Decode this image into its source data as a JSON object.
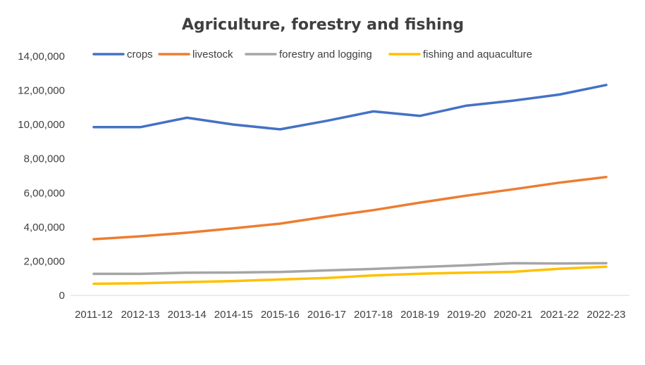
{
  "chart_data": {
    "type": "line",
    "title": "Agriculture, forestry and fishing",
    "xlabel": "",
    "ylabel": "",
    "categories": [
      "2011-12",
      "2012-13",
      "2013-14",
      "2014-15",
      "2015-16",
      "2016-17",
      "2017-18",
      "2018-19",
      "2019-20",
      "2020-21",
      "2021-22",
      "2022-23"
    ],
    "ylim": [
      0,
      1400000
    ],
    "yticks": [
      0,
      200000,
      400000,
      600000,
      800000,
      1000000,
      1200000,
      1400000
    ],
    "ytick_labels": [
      "0",
      "2,00,000",
      "4,00,000",
      "6,00,000",
      "8,00,000",
      "10,00,000",
      "12,00,000",
      "14,00,000"
    ],
    "grid": "horizontal",
    "legend": "top",
    "series": [
      {
        "name": "crops",
        "color": "#4472C4",
        "values": [
          985000,
          985000,
          1040000,
          1000000,
          972000,
          1022000,
          1077000,
          1051000,
          1111000,
          1140000,
          1176000,
          1232000
        ]
      },
      {
        "name": "livestock",
        "color": "#ED7D31",
        "values": [
          329000,
          346000,
          367000,
          393000,
          420000,
          461000,
          499000,
          543000,
          584000,
          621000,
          660000,
          693000
        ]
      },
      {
        "name": "forestry and logging",
        "color": "#A5A5A5",
        "values": [
          126000,
          126000,
          133000,
          134000,
          137000,
          146000,
          155000,
          166000,
          176000,
          188000,
          187000,
          188000
        ]
      },
      {
        "name": "fishing and aquaculture",
        "color": "#FFC000",
        "values": [
          68000,
          71000,
          78000,
          84000,
          93000,
          102000,
          117000,
          127000,
          133000,
          138000,
          156000,
          168000
        ]
      }
    ]
  }
}
